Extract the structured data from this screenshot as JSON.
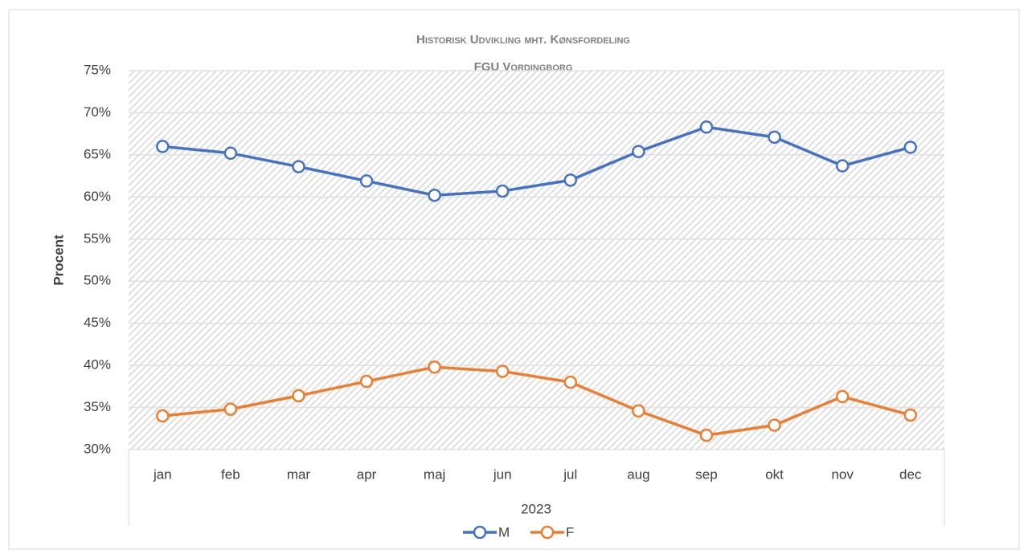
{
  "chart_data": {
    "type": "line",
    "title": [
      "Historisk Udvikling mht. Kønsfordeling",
      "FGU Vordingborg"
    ],
    "y_label": "Procent",
    "x_group_label": "2023",
    "categories": [
      "jan",
      "feb",
      "mar",
      "apr",
      "maj",
      "jun",
      "jul",
      "aug",
      "sep",
      "okt",
      "nov",
      "dec"
    ],
    "series": [
      {
        "name": "M",
        "color": "#4472c4",
        "values": [
          66.0,
          65.2,
          63.6,
          61.9,
          60.2,
          60.7,
          62.0,
          65.4,
          68.3,
          67.1,
          63.7,
          65.9
        ]
      },
      {
        "name": "F",
        "color": "#ed7d31",
        "values": [
          34.0,
          34.8,
          36.4,
          38.1,
          39.8,
          39.3,
          38.0,
          34.6,
          31.7,
          32.9,
          36.3,
          34.1
        ]
      }
    ],
    "ylim": [
      30,
      75
    ],
    "yticks": [
      {
        "value": 30,
        "label": "30%"
      },
      {
        "value": 35,
        "label": "35%"
      },
      {
        "value": 40,
        "label": "40%"
      },
      {
        "value": 45,
        "label": "45%"
      },
      {
        "value": 50,
        "label": "50%"
      },
      {
        "value": 55,
        "label": "55%"
      },
      {
        "value": 60,
        "label": "60%"
      },
      {
        "value": 65,
        "label": "65%"
      },
      {
        "value": 70,
        "label": "70%"
      },
      {
        "value": 75,
        "label": "75%"
      }
    ],
    "grid": true,
    "legend": "bottom"
  }
}
